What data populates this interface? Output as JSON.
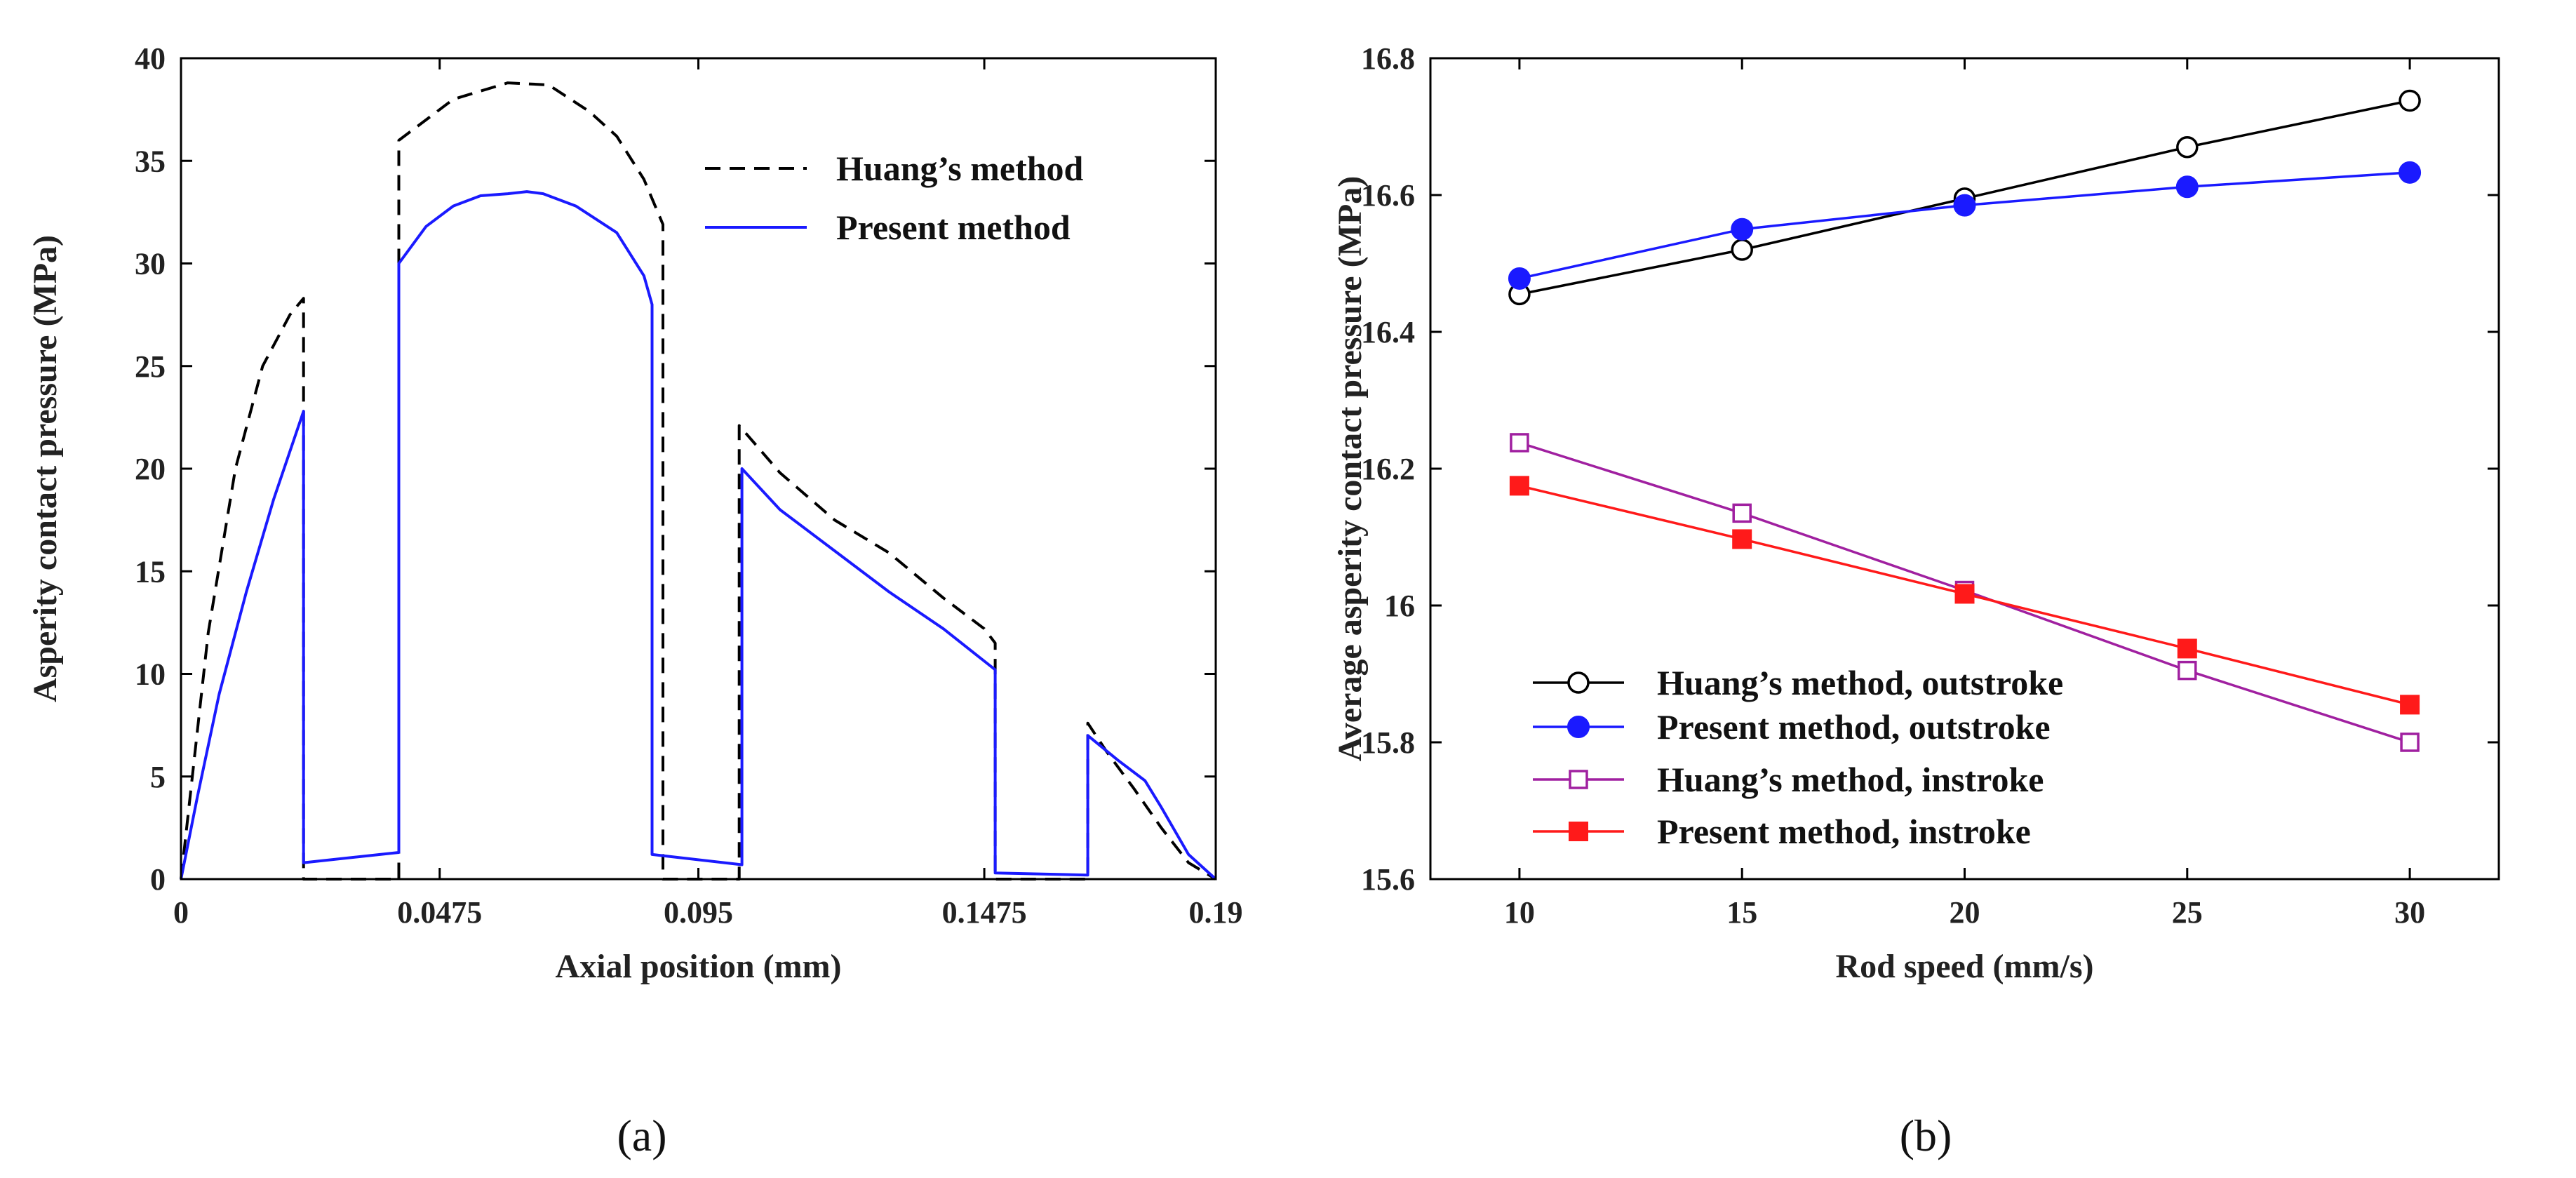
{
  "captions": [
    "(a)",
    "(b)"
  ],
  "chart_data": [
    {
      "type": "line",
      "xlabel": "Axial position (mm)",
      "ylabel": "Asperity contact pressure (MPa)",
      "xlim": [
        0,
        0.19
      ],
      "ylim": [
        0,
        40
      ],
      "xticks": [
        0,
        0.0475,
        0.095,
        0.1475,
        0.19
      ],
      "xtick_labels": [
        "0",
        "0.0475",
        "0.095",
        "0.1475",
        "0.19"
      ],
      "yticks": [
        0,
        5,
        10,
        15,
        20,
        25,
        30,
        35,
        40
      ],
      "ytick_labels": [
        "0",
        "5",
        "10",
        "15",
        "20",
        "25",
        "30",
        "35",
        "40"
      ],
      "legend_position": "top-right",
      "series": [
        {
          "name": "Huang’s method",
          "style": "dashed",
          "color": "#000000",
          "x": [
            0,
            0.005,
            0.01,
            0.015,
            0.02,
            0.0225,
            0.0225,
            0.04,
            0.04,
            0.05,
            0.06,
            0.0675,
            0.075,
            0.08,
            0.085,
            0.0885,
            0.0885,
            0.1025,
            0.1025,
            0.11,
            0.12,
            0.13,
            0.14,
            0.1475,
            0.1495,
            0.1495,
            0.1665,
            0.1665,
            0.17,
            0.175,
            0.18,
            0.185,
            0.19
          ],
          "y": [
            0,
            12,
            20,
            25,
            27.5,
            28.3,
            0,
            0,
            36,
            38,
            38.8,
            38.7,
            37.4,
            36.2,
            34.1,
            31.9,
            0,
            0,
            22.1,
            19.8,
            17.5,
            15.9,
            13.7,
            12.2,
            11.5,
            0,
            0,
            7.6,
            6.2,
            4.4,
            2.5,
            0.8,
            0
          ]
        },
        {
          "name": "Present method",
          "style": "solid",
          "color": "#1a1aff",
          "x": [
            0,
            0.003,
            0.007,
            0.012,
            0.017,
            0.0225,
            0.0225,
            0.04,
            0.04,
            0.045,
            0.05,
            0.055,
            0.06,
            0.0635,
            0.0665,
            0.0725,
            0.08,
            0.085,
            0.0865,
            0.0865,
            0.103,
            0.103,
            0.11,
            0.12,
            0.13,
            0.14,
            0.1495,
            0.1495,
            0.1665,
            0.1665,
            0.172,
            0.177,
            0.18,
            0.185,
            0.19
          ],
          "y": [
            0,
            4,
            9,
            14,
            18.5,
            22.8,
            0.8,
            1.3,
            30,
            31.8,
            32.8,
            33.3,
            33.4,
            33.5,
            33.4,
            32.8,
            31.5,
            29.4,
            28,
            1.2,
            0.7,
            20,
            18,
            16,
            14,
            12.2,
            10.2,
            0.3,
            0.2,
            7,
            5.8,
            4.8,
            3.5,
            1.2,
            0
          ]
        }
      ]
    },
    {
      "type": "line",
      "xlabel": "Rod speed (mm/s)",
      "ylabel": "Average asperity contact pressure (MPa)",
      "xlim": [
        8,
        32
      ],
      "ylim": [
        15.6,
        16.8
      ],
      "xticks": [
        10,
        15,
        20,
        25,
        30
      ],
      "xtick_labels": [
        "10",
        "15",
        "20",
        "25",
        "30"
      ],
      "yticks": [
        15.6,
        15.8,
        16,
        16.2,
        16.4,
        16.6,
        16.8
      ],
      "ytick_labels": [
        "15.6",
        "15.8",
        "16",
        "16.2",
        "16.4",
        "16.6",
        "16.8"
      ],
      "legend_position": "bottom-left",
      "x": [
        10,
        15,
        20,
        25,
        30
      ],
      "series": [
        {
          "name": "Huang’s method, outstroke",
          "color": "#000000",
          "marker": "circle-open",
          "values": [
            16.455,
            16.52,
            16.595,
            16.67,
            16.738
          ]
        },
        {
          "name": "Present method, outstroke",
          "color": "#1a1aff",
          "marker": "circle-filled",
          "values": [
            16.478,
            16.55,
            16.585,
            16.612,
            16.633
          ]
        },
        {
          "name": "Huang’s method, instroke",
          "color": "#a020a0",
          "marker": "square-open",
          "values": [
            16.238,
            16.135,
            16.022,
            15.905,
            15.8
          ]
        },
        {
          "name": "Present method, instroke",
          "color": "#ff1a1a",
          "marker": "square-filled",
          "values": [
            16.175,
            16.097,
            16.017,
            15.937,
            15.855
          ]
        }
      ]
    }
  ]
}
